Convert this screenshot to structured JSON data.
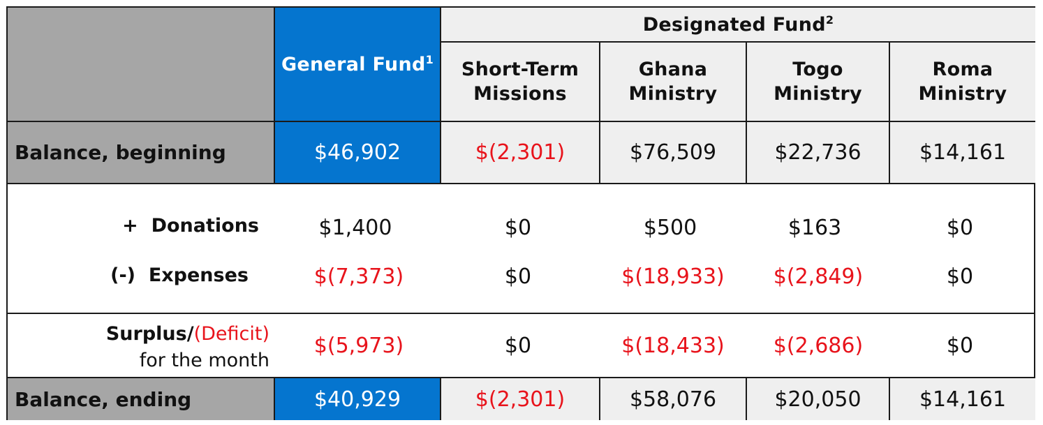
{
  "header": {
    "general_fund": "General Fund",
    "general_fund_note": "1",
    "designated_fund": "Designated Fund",
    "designated_fund_note": "2",
    "columns": [
      "Short-Term Missions",
      "Ghana Ministry",
      "Togo Ministry",
      "Roma Ministry"
    ]
  },
  "rows": {
    "beginning": {
      "label": "Balance, beginning",
      "general": "$46,902",
      "values": [
        "$(2,301)",
        "$76,509",
        "$22,736",
        "$14,161"
      ]
    },
    "donations": {
      "sign": "+",
      "label": "Donations",
      "general": "$1,400",
      "values": [
        "$0",
        "$500",
        "$163",
        "$0"
      ]
    },
    "expenses": {
      "sign": "(-)",
      "label": "Expenses",
      "general": "$(7,373)",
      "values": [
        "$0",
        "$(18,933)",
        "$(2,849)",
        "$0"
      ]
    },
    "surplus": {
      "label_bold": "Surplus/",
      "label_deficit": "(Deficit)",
      "label_line2": "for the month",
      "general": "$(5,973)",
      "values": [
        "$0",
        "$(18,433)",
        "$(2,686)",
        "$0"
      ]
    },
    "ending": {
      "label": "Balance, ending",
      "general": "$40,929",
      "values": [
        "$(2,301)",
        "$58,076",
        "$20,050",
        "$14,161"
      ]
    }
  },
  "colors": {
    "header_grey": "#a6a6a6",
    "general_fund_blue": "#0575cf",
    "light_cell": "#efefef",
    "negative_red": "#e8131b",
    "border": "#1a1a1a"
  }
}
